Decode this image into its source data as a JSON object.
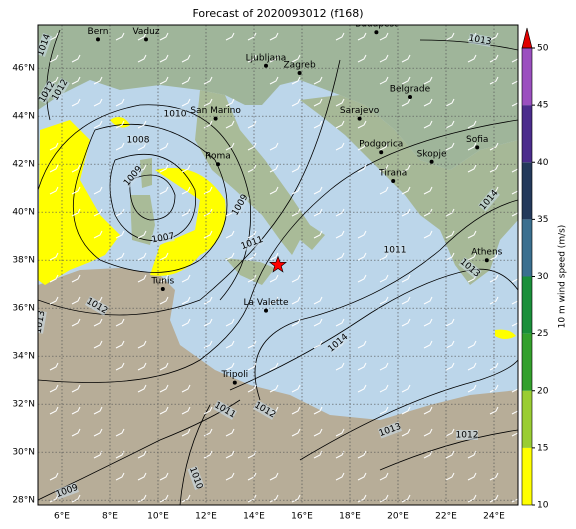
{
  "map": {
    "title": "Forecast of 2020093012 (f168)",
    "lonlim": [
      5,
      25
    ],
    "latlim": [
      27.8,
      47.8
    ],
    "lonticks": [
      {
        "value": 6,
        "label": "6°E"
      },
      {
        "value": 8,
        "label": "8°E"
      },
      {
        "value": 10,
        "label": "10°E"
      },
      {
        "value": 12,
        "label": "12°E"
      },
      {
        "value": 14,
        "label": "14°E"
      },
      {
        "value": 16,
        "label": "16°E"
      },
      {
        "value": 18,
        "label": "18°E"
      },
      {
        "value": 20,
        "label": "20°E"
      },
      {
        "value": 22,
        "label": "22°E"
      },
      {
        "value": 24,
        "label": "24°E"
      }
    ],
    "latticks": [
      {
        "value": 28,
        "label": "28°N"
      },
      {
        "value": 30,
        "label": "30°N"
      },
      {
        "value": 32,
        "label": "32°N"
      },
      {
        "value": 34,
        "label": "34°N"
      },
      {
        "value": 36,
        "label": "36°N"
      },
      {
        "value": 38,
        "label": "38°N"
      },
      {
        "value": 40,
        "label": "40°N"
      },
      {
        "value": 42,
        "label": "42°N"
      },
      {
        "value": 44,
        "label": "44°N"
      },
      {
        "value": 46,
        "label": "46°N"
      }
    ],
    "cities": [
      {
        "name": "Bern",
        "lon": 7.5,
        "lat": 47.2
      },
      {
        "name": "Vaduz",
        "lon": 9.5,
        "lat": 47.2
      },
      {
        "name": "Budapest",
        "lon": 19.1,
        "lat": 47.5
      },
      {
        "name": "Ljubljana",
        "lon": 14.5,
        "lat": 46.1
      },
      {
        "name": "Zagreb",
        "lon": 15.9,
        "lat": 45.8
      },
      {
        "name": "Belgrade",
        "lon": 20.5,
        "lat": 44.8
      },
      {
        "name": "San Marino",
        "lon": 12.4,
        "lat": 43.9
      },
      {
        "name": "Sarajevo",
        "lon": 18.4,
        "lat": 43.9
      },
      {
        "name": "Podgorica",
        "lon": 19.3,
        "lat": 42.5
      },
      {
        "name": "Roma",
        "lon": 12.5,
        "lat": 42.0
      },
      {
        "name": "Skopje",
        "lon": 21.4,
        "lat": 42.1
      },
      {
        "name": "Sofia",
        "lon": 23.3,
        "lat": 42.7
      },
      {
        "name": "Tirana",
        "lon": 19.8,
        "lat": 41.3
      },
      {
        "name": "Athens",
        "lon": 23.7,
        "lat": 38.0
      },
      {
        "name": "Tunis",
        "lon": 10.2,
        "lat": 36.8
      },
      {
        "name": "La Valette",
        "lon": 14.5,
        "lat": 35.9
      },
      {
        "name": "Tripoli",
        "lon": 13.2,
        "lat": 32.9
      }
    ],
    "marker": {
      "lon": 15.0,
      "lat": 37.8,
      "color": "#ff0000"
    },
    "isobar_labels": [
      "1014",
      "1012",
      "1010",
      "1008",
      "1009",
      "1007",
      "1009",
      "1011",
      "1012",
      "1013",
      "1014",
      "1011",
      "1012",
      "1013",
      "1012",
      "1010",
      "1009",
      "1013",
      "1012",
      "1013",
      "1011",
      "1014"
    ],
    "colorbar": {
      "label": "10 m wind speed (m/s)",
      "lim": [
        10,
        50
      ],
      "ticks": [
        10,
        15,
        20,
        25,
        30,
        35,
        40,
        45,
        50
      ],
      "colors": [
        "#ffff00",
        "#9acd32",
        "#33a02c",
        "#1a8f3a",
        "#3a6f8f",
        "#23395b",
        "#4b2c8c",
        "#9b4fbf"
      ],
      "extend_color": "#e00000"
    }
  }
}
